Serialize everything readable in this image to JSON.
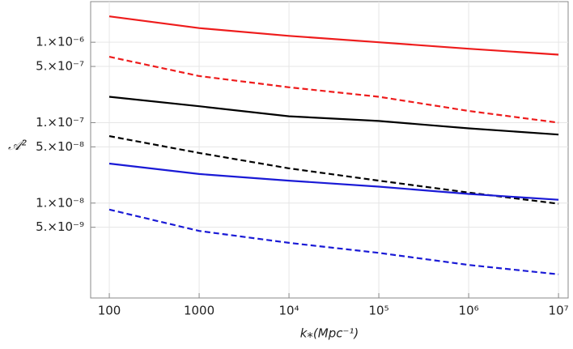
{
  "chart_data": {
    "type": "line",
    "x_label": "k⁎(Mpc⁻¹)",
    "y_label": "𝒜²",
    "x_scale": "log",
    "y_scale": "log",
    "grid": true,
    "x": [
      100,
      1000,
      10000,
      100000,
      1000000,
      10000000
    ],
    "xlim": [
      62,
      12800000
    ],
    "ylim": [
      6.6e-10,
      3.2e-06
    ],
    "xticks": [
      100,
      1000,
      {
        "value": 10000,
        "label": "10⁴"
      },
      {
        "value": 100000,
        "label": "10⁵"
      },
      {
        "value": 1000000,
        "label": "10⁶"
      },
      {
        "value": 10000000,
        "label": "10⁷"
      }
    ],
    "yticks": [
      {
        "value": 1e-06,
        "label": "1.×10⁻⁶"
      },
      {
        "value": 5e-07,
        "label": "5.×10⁻⁷"
      },
      {
        "value": 1e-07,
        "label": "1.×10⁻⁷"
      },
      {
        "value": 5e-08,
        "label": "5.×10⁻⁸"
      },
      {
        "value": 1e-08,
        "label": "1.×10⁻⁸"
      },
      {
        "value": 5e-09,
        "label": "5.×10⁻⁹"
      }
    ],
    "series": [
      {
        "color": "#ee1c1c",
        "dashed": false,
        "values": [
          2.1e-06,
          1.5e-06,
          1.2e-06,
          1e-06,
          8.3e-07,
          7e-07
        ]
      },
      {
        "color": "#ee1c1c",
        "dashed": true,
        "values": [
          6.6e-07,
          3.8e-07,
          2.75e-07,
          2.1e-07,
          1.4e-07,
          1e-07
        ]
      },
      {
        "color": "#000000",
        "dashed": false,
        "values": [
          2.1e-07,
          1.6e-07,
          1.2e-07,
          1.05e-07,
          8.5e-08,
          7.1e-08
        ]
      },
      {
        "color": "#000000",
        "dashed": true,
        "values": [
          6.8e-08,
          4.2e-08,
          2.7e-08,
          1.9e-08,
          1.35e-08,
          9.8e-09
        ]
      },
      {
        "color": "#1a1ad6",
        "dashed": false,
        "values": [
          3.1e-08,
          2.3e-08,
          1.9e-08,
          1.6e-08,
          1.3e-08,
          1.1e-08
        ]
      },
      {
        "color": "#1a1ad6",
        "dashed": true,
        "values": [
          8.3e-09,
          4.5e-09,
          3.2e-09,
          2.4e-09,
          1.7e-09,
          1.3e-09
        ]
      }
    ]
  }
}
